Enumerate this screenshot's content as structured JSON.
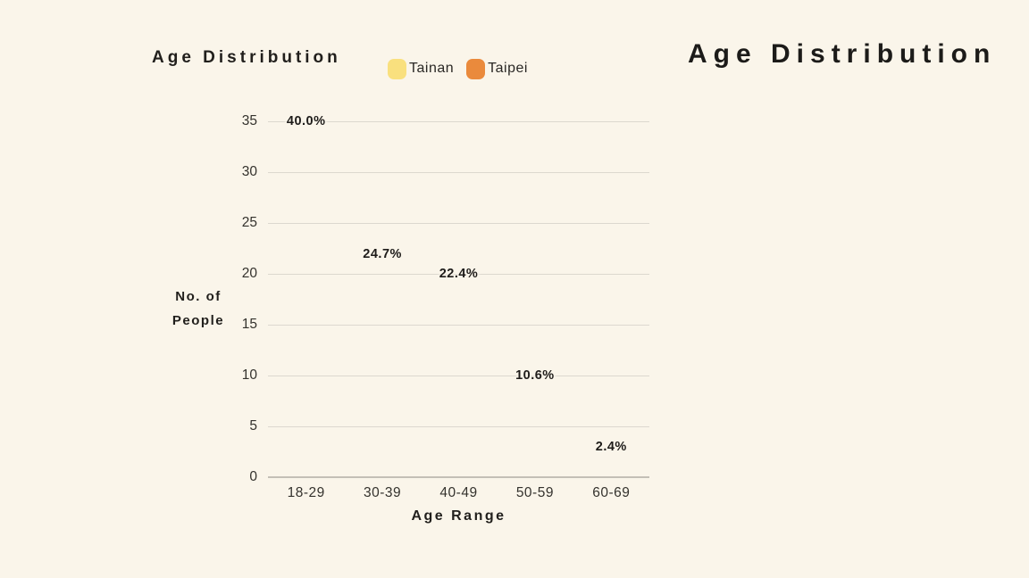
{
  "page": {
    "background": "#faf5ea"
  },
  "chart_title": "Age Distribution",
  "side_title": "Age Distribution",
  "legend": [
    {
      "label": "Tainan",
      "color": "#f9e07e"
    },
    {
      "label": "Taipei",
      "color": "#ea8a3c"
    }
  ],
  "colors": {
    "text": "#211f1c",
    "tick_text": "#34322d",
    "gridline": "#dcd8cf",
    "axis_line": "#c3bfb6"
  },
  "chart_data": {
    "type": "bar",
    "title": "Age Distribution",
    "xlabel": "Age Range",
    "ylabel": "No. of People",
    "ylabel_lines": [
      "No. of",
      "People"
    ],
    "categories": [
      "18-29",
      "30-39",
      "40-49",
      "50-59",
      "60-69"
    ],
    "yticks": [
      0,
      5,
      10,
      15,
      20,
      25,
      30,
      35
    ],
    "ylim": [
      0,
      35
    ],
    "grid": "horizontal",
    "legend_position": "top",
    "series_names": [
      "Tainan",
      "Taipei"
    ],
    "bar_labels": [
      "40.0%",
      "24.7%",
      "22.4%",
      "10.6%",
      "2.4%"
    ],
    "label_heights_people": [
      34,
      21,
      19,
      9,
      2
    ],
    "bars_rendered": false
  }
}
